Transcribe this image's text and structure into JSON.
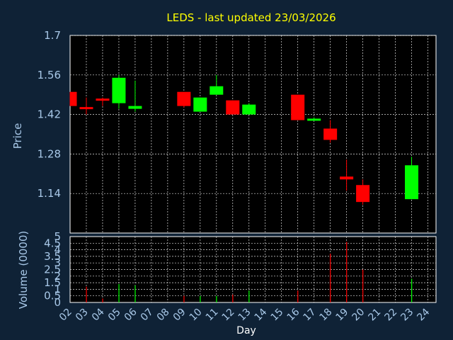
{
  "chart_data": [
    {
      "type": "candlestick",
      "title": "LEDS - last updated 23/03/2026",
      "ylabel": "Price",
      "ylim": [
        1.0,
        1.7
      ],
      "yticks": [
        "1.7",
        "1.56",
        "1.42",
        "1.28",
        "1.14"
      ],
      "ytick_values": [
        1.7,
        1.56,
        1.42,
        1.28,
        1.14
      ],
      "grid": true,
      "up_color": "#00ff00",
      "down_color": "#ff0000",
      "candles": [
        {
          "day": "02",
          "open": 1.5,
          "high": 1.5,
          "low": 1.45,
          "close": 1.45
        },
        {
          "day": "03",
          "open": 1.445,
          "high": 1.48,
          "low": 1.42,
          "close": 1.44
        },
        {
          "day": "04",
          "open": 1.475,
          "high": 1.48,
          "low": 1.45,
          "close": 1.47
        },
        {
          "day": "05",
          "open": 1.46,
          "high": 1.56,
          "low": 1.44,
          "close": 1.55
        },
        {
          "day": "06",
          "open": 1.44,
          "high": 1.54,
          "low": 1.43,
          "close": 1.45
        },
        {
          "day": "09",
          "open": 1.5,
          "high": 1.5,
          "low": 1.445,
          "close": 1.45
        },
        {
          "day": "10",
          "open": 1.43,
          "high": 1.48,
          "low": 1.43,
          "close": 1.48
        },
        {
          "day": "11",
          "open": 1.49,
          "high": 1.56,
          "low": 1.49,
          "close": 1.52
        },
        {
          "day": "12",
          "open": 1.47,
          "high": 1.47,
          "low": 1.42,
          "close": 1.42
        },
        {
          "day": "13",
          "open": 1.42,
          "high": 1.46,
          "low": 1.42,
          "close": 1.455
        },
        {
          "day": "16",
          "open": 1.49,
          "high": 1.49,
          "low": 1.4,
          "close": 1.4
        },
        {
          "day": "17",
          "open": 1.4,
          "high": 1.41,
          "low": 1.4,
          "close": 1.403
        },
        {
          "day": "18",
          "open": 1.37,
          "high": 1.4,
          "low": 1.32,
          "close": 1.33
        },
        {
          "day": "19",
          "open": 1.2,
          "high": 1.26,
          "low": 1.15,
          "close": 1.19
        },
        {
          "day": "20",
          "open": 1.17,
          "high": 1.19,
          "low": 1.1,
          "close": 1.11
        },
        {
          "day": "23",
          "open": 1.12,
          "high": 1.27,
          "low": 1.12,
          "close": 1.24
        }
      ]
    },
    {
      "type": "bar",
      "ylabel": "Volume (0000)",
      "xlabel": "Day",
      "ylim": [
        0,
        5
      ],
      "yticks": [
        "5",
        "4.5",
        "4",
        "3.5",
        "3",
        "2.5",
        "2",
        "1.5",
        "1",
        "0.5",
        "0"
      ],
      "ytick_values": [
        5,
        4.5,
        4,
        3.5,
        3,
        2.5,
        2,
        1.5,
        1,
        0.5,
        0
      ],
      "grid": true,
      "categories": [
        "02",
        "03",
        "04",
        "05",
        "06",
        "07",
        "08",
        "09",
        "10",
        "11",
        "12",
        "13",
        "14",
        "15",
        "16",
        "17",
        "18",
        "19",
        "20",
        "21",
        "22",
        "23",
        "24"
      ],
      "volumes": [
        {
          "day": "03",
          "value": 1.2,
          "color": "#ff0000"
        },
        {
          "day": "04",
          "value": 0.3,
          "color": "#ff0000"
        },
        {
          "day": "05",
          "value": 1.4,
          "color": "#00ff00"
        },
        {
          "day": "06",
          "value": 1.3,
          "color": "#00ff00"
        },
        {
          "day": "09",
          "value": 0.5,
          "color": "#ff0000"
        },
        {
          "day": "10",
          "value": 0.5,
          "color": "#00ff00"
        },
        {
          "day": "11",
          "value": 0.5,
          "color": "#00ff00"
        },
        {
          "day": "12",
          "value": 0.6,
          "color": "#ff0000"
        },
        {
          "day": "13",
          "value": 0.9,
          "color": "#00ff00"
        },
        {
          "day": "16",
          "value": 0.9,
          "color": "#ff0000"
        },
        {
          "day": "18",
          "value": 3.7,
          "color": "#ff0000"
        },
        {
          "day": "19",
          "value": 4.6,
          "color": "#ff0000"
        },
        {
          "day": "20",
          "value": 2.5,
          "color": "#ff0000"
        },
        {
          "day": "23",
          "value": 1.8,
          "color": "#00ff00"
        }
      ]
    }
  ],
  "colors": {
    "background": "#0f2236",
    "title": "#ffff00",
    "axis_text": "#a8c8e8",
    "grid": "#dddddd"
  }
}
